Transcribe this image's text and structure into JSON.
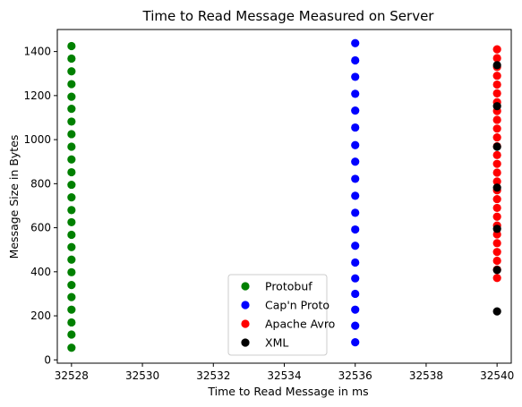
{
  "chart_data": {
    "type": "scatter",
    "title": "Time to Read Message Measured on Server",
    "xlabel": "Time to Read Message in ms",
    "ylabel": "Message Size in Bytes",
    "xlim": [
      32527.6,
      32540.4
    ],
    "ylim": [
      -15,
      1500
    ],
    "xticks": [
      32528,
      32530,
      32532,
      32534,
      32536,
      32538,
      32540
    ],
    "yticks": [
      0,
      200,
      400,
      600,
      800,
      1000,
      1200,
      1400
    ],
    "grid": false,
    "legend_position": "lower-center",
    "series": [
      {
        "name": "Protobuf",
        "color": "#008000",
        "x": 32528,
        "y": [
          55,
          115,
          170,
          228,
          285,
          340,
          398,
          455,
          512,
          568,
          625,
          680,
          738,
          795,
          852,
          910,
          968,
          1025,
          1082,
          1140,
          1195,
          1252,
          1310,
          1368,
          1425
        ]
      },
      {
        "name": "Cap'n Proto",
        "color": "#0000ff",
        "x": 32536,
        "y": [
          80,
          155,
          228,
          300,
          370,
          442,
          518,
          592,
          668,
          745,
          822,
          900,
          975,
          1055,
          1132,
          1208,
          1285,
          1360,
          1438
        ]
      },
      {
        "name": "Apache Avro",
        "color": "#ff0000",
        "x": 32540,
        "y": [
          372,
          410,
          450,
          490,
          530,
          570,
          610,
          650,
          690,
          730,
          770,
          810,
          850,
          890,
          930,
          970,
          1010,
          1050,
          1090,
          1130,
          1170,
          1210,
          1250,
          1290,
          1330,
          1370,
          1410
        ]
      },
      {
        "name": "XML",
        "color": "#000000",
        "x": 32540,
        "y": [
          220,
          408,
          595,
          782,
          968,
          1152,
          1338
        ]
      }
    ]
  }
}
